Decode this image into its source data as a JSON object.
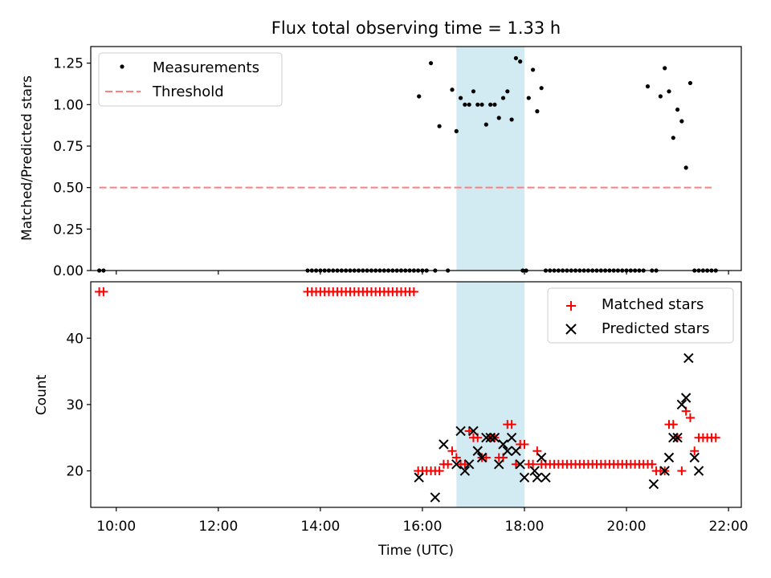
{
  "title": "Flux total observing time = 1.33 h",
  "chart_data": [
    {
      "type": "scatter",
      "panel": "top",
      "ylabel": "Matched/Predicted stars",
      "xlabel": "",
      "xlim": [
        "09:30",
        "22:15"
      ],
      "ylim": [
        0,
        1.35
      ],
      "y_ticks": [
        0.0,
        0.25,
        0.5,
        0.75,
        1.0,
        1.25
      ],
      "y_tick_labels": [
        "0.00",
        "0.25",
        "0.50",
        "0.75",
        "1.00",
        "1.25"
      ],
      "legend": {
        "position": "top-left",
        "entries": [
          "Measurements",
          "Threshold"
        ]
      },
      "threshold": {
        "name": "Threshold",
        "value": 0.5,
        "x": [
          "09:40",
          "21:40"
        ],
        "color": "#ff7f7f"
      },
      "highlight": {
        "x": [
          "16:40",
          "18:00"
        ],
        "color": "#add8e6"
      },
      "series": [
        {
          "name": "Measurements",
          "color": "#000000",
          "x": [
            "09:40",
            "09:45",
            "13:45",
            "13:50",
            "13:55",
            "14:00",
            "14:05",
            "14:10",
            "14:15",
            "14:20",
            "14:25",
            "14:30",
            "14:35",
            "14:40",
            "14:45",
            "14:50",
            "14:55",
            "15:00",
            "15:05",
            "15:10",
            "15:15",
            "15:20",
            "15:25",
            "15:30",
            "15:35",
            "15:40",
            "15:45",
            "15:50",
            "15:55",
            "15:56",
            "16:00",
            "16:05",
            "16:10",
            "16:15",
            "16:20",
            "16:30",
            "16:35",
            "16:40",
            "16:45",
            "16:50",
            "16:55",
            "17:00",
            "17:05",
            "17:10",
            "17:15",
            "17:20",
            "17:25",
            "17:30",
            "17:35",
            "17:40",
            "17:45",
            "17:50",
            "17:55",
            "17:58",
            "18:02",
            "18:05",
            "18:10",
            "18:15",
            "18:20",
            "18:25",
            "18:30",
            "18:35",
            "18:40",
            "18:45",
            "18:50",
            "18:55",
            "19:00",
            "19:05",
            "19:10",
            "19:15",
            "19:20",
            "19:25",
            "19:30",
            "19:35",
            "19:40",
            "19:45",
            "19:50",
            "19:55",
            "20:00",
            "20:05",
            "20:10",
            "20:15",
            "20:20",
            "20:25",
            "20:30",
            "20:35",
            "20:40",
            "20:45",
            "20:50",
            "20:55",
            "21:00",
            "21:05",
            "21:10",
            "21:15",
            "21:20",
            "21:25",
            "21:30",
            "21:35",
            "21:40",
            "21:45"
          ],
          "y": [
            0,
            0,
            0,
            0,
            0,
            0,
            0,
            0,
            0,
            0,
            0,
            0,
            0,
            0,
            0,
            0,
            0,
            0,
            0,
            0,
            0,
            0,
            0,
            0,
            0,
            0,
            0,
            0,
            0,
            1.05,
            0,
            0,
            1.25,
            0,
            0.87,
            0,
            1.09,
            0.84,
            1.04,
            1.0,
            1.0,
            1.08,
            1.0,
            1.0,
            0.88,
            1.0,
            1.0,
            0.92,
            1.04,
            1.08,
            0.91,
            1.28,
            1.26,
            0,
            0,
            1.04,
            1.21,
            0.96,
            1.1,
            0,
            0,
            0,
            0,
            0,
            0,
            0,
            0,
            0,
            0,
            0,
            0,
            0,
            0,
            0,
            0,
            0,
            0,
            0,
            0,
            0,
            0,
            0,
            0,
            1.11,
            0,
            0,
            1.05,
            1.22,
            1.08,
            0.8,
            0.97,
            0.9,
            0.62,
            1.13,
            0,
            0,
            0,
            0,
            0,
            0
          ]
        }
      ]
    },
    {
      "type": "scatter",
      "panel": "bottom",
      "ylabel": "Count",
      "xlabel": "Time (UTC)",
      "xlim": [
        "09:30",
        "22:15"
      ],
      "ylim": [
        14.5,
        48.5
      ],
      "y_ticks": [
        20,
        30,
        40
      ],
      "y_tick_labels": [
        "20",
        "30",
        "40"
      ],
      "x_ticks": [
        "10:00",
        "12:00",
        "14:00",
        "16:00",
        "18:00",
        "20:00",
        "22:00"
      ],
      "legend": {
        "position": "top-right",
        "entries": [
          "Matched stars",
          "Predicted stars"
        ]
      },
      "highlight": {
        "x": [
          "16:40",
          "18:00"
        ],
        "color": "#add8e6"
      },
      "series": [
        {
          "name": "Matched stars",
          "color": "#ff0000",
          "marker": "+",
          "x": [
            "09:40",
            "09:45",
            "13:45",
            "13:50",
            "13:55",
            "14:00",
            "14:05",
            "14:10",
            "14:15",
            "14:20",
            "14:25",
            "14:30",
            "14:35",
            "14:40",
            "14:45",
            "14:50",
            "14:55",
            "15:00",
            "15:05",
            "15:10",
            "15:15",
            "15:20",
            "15:25",
            "15:30",
            "15:35",
            "15:40",
            "15:45",
            "15:50",
            "15:55",
            "16:00",
            "16:05",
            "16:10",
            "16:15",
            "16:20",
            "16:25",
            "16:30",
            "16:35",
            "16:40",
            "16:45",
            "16:50",
            "16:55",
            "17:00",
            "17:05",
            "17:10",
            "17:15",
            "17:20",
            "17:25",
            "17:30",
            "17:35",
            "17:40",
            "17:45",
            "17:50",
            "17:55",
            "18:00",
            "18:05",
            "18:10",
            "18:15",
            "18:20",
            "18:25",
            "18:30",
            "18:35",
            "18:40",
            "18:45",
            "18:50",
            "18:55",
            "19:00",
            "19:05",
            "19:10",
            "19:15",
            "19:20",
            "19:25",
            "19:30",
            "19:35",
            "19:40",
            "19:45",
            "19:50",
            "19:55",
            "20:00",
            "20:05",
            "20:10",
            "20:15",
            "20:20",
            "20:25",
            "20:30",
            "20:35",
            "20:40",
            "20:45",
            "20:50",
            "20:55",
            "21:00",
            "21:05",
            "21:10",
            "21:15",
            "21:20",
            "21:25",
            "21:30",
            "21:35",
            "21:40",
            "21:45"
          ],
          "y": [
            47,
            47,
            47,
            47,
            47,
            47,
            47,
            47,
            47,
            47,
            47,
            47,
            47,
            47,
            47,
            47,
            47,
            47,
            47,
            47,
            47,
            47,
            47,
            47,
            47,
            47,
            47,
            47,
            20,
            20,
            20,
            20,
            20,
            20,
            21,
            21,
            23,
            22,
            21,
            21,
            26,
            25,
            25,
            22,
            22,
            25,
            25,
            22,
            22,
            27,
            27,
            21,
            24,
            24,
            21,
            21,
            23,
            21,
            21,
            21,
            21,
            21,
            21,
            21,
            21,
            21,
            21,
            21,
            21,
            21,
            21,
            21,
            21,
            21,
            21,
            21,
            21,
            21,
            21,
            21,
            21,
            21,
            21,
            21,
            20,
            20,
            20,
            27,
            27,
            25,
            20,
            29,
            28,
            23,
            25,
            25,
            25,
            25,
            25
          ]
        },
        {
          "name": "Predicted stars",
          "color": "#000000",
          "marker": "x",
          "x": [
            "15:56",
            "16:15",
            "16:25",
            "16:40",
            "16:45",
            "16:50",
            "16:55",
            "17:00",
            "17:05",
            "17:10",
            "17:15",
            "17:20",
            "17:25",
            "17:30",
            "17:35",
            "17:40",
            "17:45",
            "17:50",
            "17:55",
            "18:00",
            "18:12",
            "18:15",
            "18:20",
            "18:25",
            "20:32",
            "20:45",
            "20:50",
            "20:55",
            "21:00",
            "21:05",
            "21:10",
            "21:13",
            "21:20",
            "21:25"
          ],
          "y": [
            19,
            16,
            24,
            21,
            26,
            20,
            21,
            26,
            23,
            22,
            25,
            25,
            25,
            21,
            24,
            23,
            25,
            23,
            21,
            19,
            20,
            19,
            22,
            19,
            18,
            20,
            22,
            25,
            25,
            30,
            31,
            37,
            22,
            20
          ]
        }
      ]
    }
  ]
}
